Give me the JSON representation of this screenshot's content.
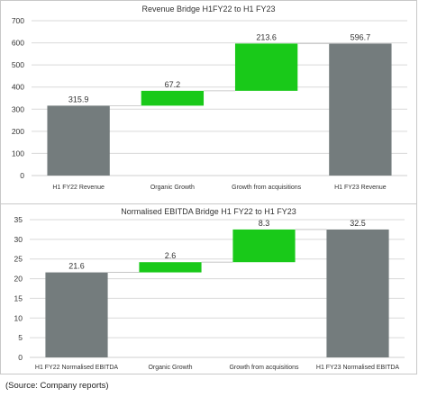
{
  "colors": {
    "total": "#747c7d",
    "step": "#19c919",
    "grid": "#d9d9d9",
    "axis": "#cfcfcf",
    "text": "#333333"
  },
  "chart_data": [
    {
      "type": "bar",
      "subtype": "waterfall",
      "title": "Revenue Bridge  H1FY22 to H1 FY23",
      "categories": [
        "H1 FY22 Revenue",
        "Organic Growth",
        "Growth from acquisitions",
        "H1 FY23 Revenue"
      ],
      "values": [
        315.9,
        67.2,
        213.6,
        596.7
      ],
      "labels": [
        "315.9",
        "67.2",
        "213.6",
        "596.7"
      ],
      "kinds": [
        "total",
        "step",
        "step",
        "total"
      ],
      "ylim": [
        0,
        700
      ],
      "yticks": [
        0,
        100,
        200,
        300,
        400,
        500,
        600,
        700
      ],
      "grid": true,
      "xlabel": "",
      "ylabel": ""
    },
    {
      "type": "bar",
      "subtype": "waterfall",
      "title": "Normalised EBITDA Bridge H1 FY22 to H1 FY23",
      "categories": [
        "H1 FY22 Normalised EBITDA",
        "Organic Growth",
        "Growth from acquisitions",
        "H1 FY23 Normalised EBITDA"
      ],
      "values": [
        21.6,
        2.6,
        8.3,
        32.5
      ],
      "labels": [
        "21.6",
        "2.6",
        "8.3",
        "32.5"
      ],
      "kinds": [
        "total",
        "step",
        "step",
        "total"
      ],
      "ylim": [
        0,
        35
      ],
      "yticks": [
        0,
        5,
        10,
        15,
        20,
        25,
        30,
        35
      ],
      "grid": true,
      "xlabel": "",
      "ylabel": ""
    }
  ],
  "source_note": "(Source: Company reports)"
}
